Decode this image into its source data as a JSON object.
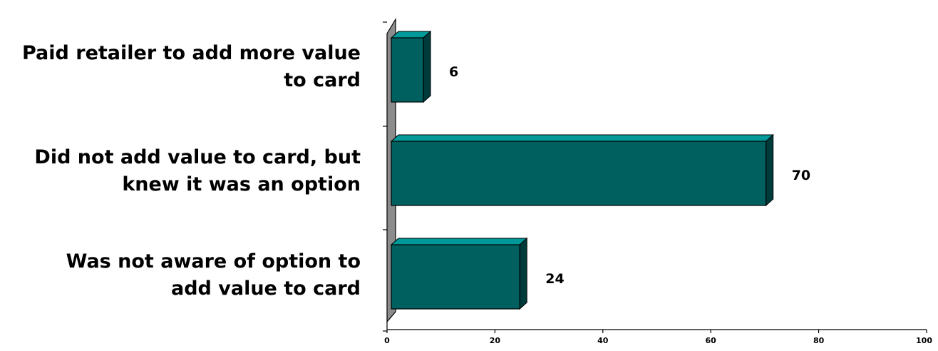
{
  "chart_data": {
    "type": "bar",
    "orientation": "horizontal",
    "style": "3d",
    "categories": [
      [
        "Paid retailer to add more value",
        "to card"
      ],
      [
        "Did not add value to card, but",
        "knew it was an option"
      ],
      [
        "Was not aware of option to",
        "add value to card"
      ]
    ],
    "values": [
      6,
      70,
      24
    ],
    "data_labels": [
      "6",
      "70",
      "24"
    ],
    "xlim": [
      0,
      100
    ],
    "xticks": [
      "0",
      "20",
      "40",
      "60",
      "80",
      "100"
    ],
    "title": "",
    "xlabel": "",
    "ylabel": "",
    "grid": false,
    "legend": "none"
  },
  "colors": {
    "bar_front": "#006060",
    "bar_top": "#009999",
    "bar_side": "#003b3b",
    "axis_wall": "#8c8c8c",
    "axis_line": "#000000",
    "text": "#000000"
  }
}
